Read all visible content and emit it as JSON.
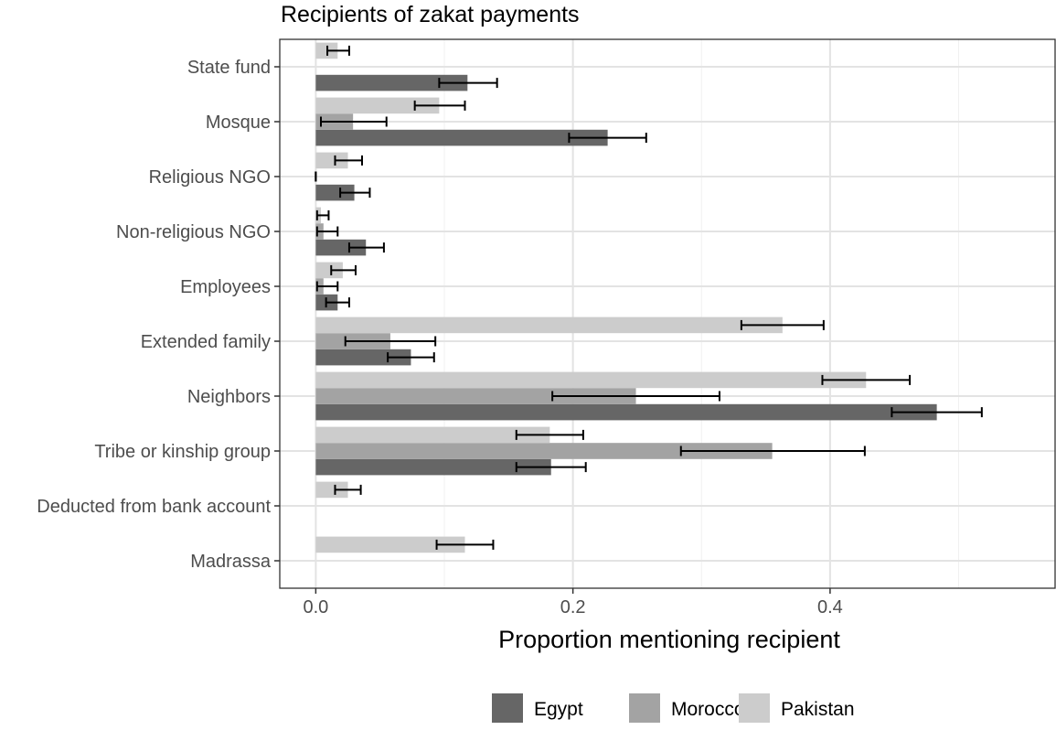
{
  "chart_data": {
    "type": "bar",
    "orientation": "horizontal",
    "title": "Recipients of zakat payments",
    "xlabel": "Proportion mentioning recipient",
    "ylabel": "",
    "xlim": [
      -0.028,
      0.575
    ],
    "x_ticks": [
      0.0,
      0.2,
      0.4
    ],
    "x_tick_labels": [
      "0.0",
      "0.2",
      "0.4"
    ],
    "grid": true,
    "legend_position": "bottom",
    "categories": [
      "State fund",
      "Mosque",
      "Religious NGO",
      "Non-religious NGO",
      "Employees",
      "Extended family",
      "Neighbors",
      "Tribe or kinship group",
      "Deducted from bank account",
      "Madrassa"
    ],
    "series": [
      {
        "name": "Egypt",
        "color": "#666666",
        "values": [
          0.118,
          0.227,
          0.03,
          0.039,
          0.017,
          0.074,
          0.483,
          0.183,
          null,
          null
        ],
        "error_low": [
          0.096,
          0.197,
          0.019,
          0.026,
          0.008,
          0.056,
          0.448,
          0.156,
          null,
          null
        ],
        "error_high": [
          0.141,
          0.257,
          0.042,
          0.053,
          0.026,
          0.092,
          0.518,
          0.21,
          null,
          null
        ]
      },
      {
        "name": "Morocco",
        "color": "#a3a3a3",
        "values": [
          null,
          0.029,
          0.0,
          0.006,
          0.006,
          0.058,
          0.249,
          0.355,
          null,
          null
        ],
        "error_low": [
          null,
          0.004,
          0.0,
          0.001,
          0.001,
          0.023,
          0.184,
          0.284,
          null,
          null
        ],
        "error_high": [
          null,
          0.055,
          0.0,
          0.017,
          0.017,
          0.093,
          0.314,
          0.427,
          null,
          null
        ]
      },
      {
        "name": "Pakistan",
        "color": "#cccccc",
        "values": [
          0.017,
          0.096,
          0.025,
          0.004,
          0.021,
          0.363,
          0.428,
          0.182,
          0.025,
          0.116
        ],
        "error_low": [
          0.009,
          0.077,
          0.015,
          0.001,
          0.012,
          0.331,
          0.394,
          0.156,
          0.015,
          0.094
        ],
        "error_high": [
          0.026,
          0.116,
          0.036,
          0.01,
          0.031,
          0.395,
          0.462,
          0.208,
          0.035,
          0.138
        ]
      }
    ]
  }
}
